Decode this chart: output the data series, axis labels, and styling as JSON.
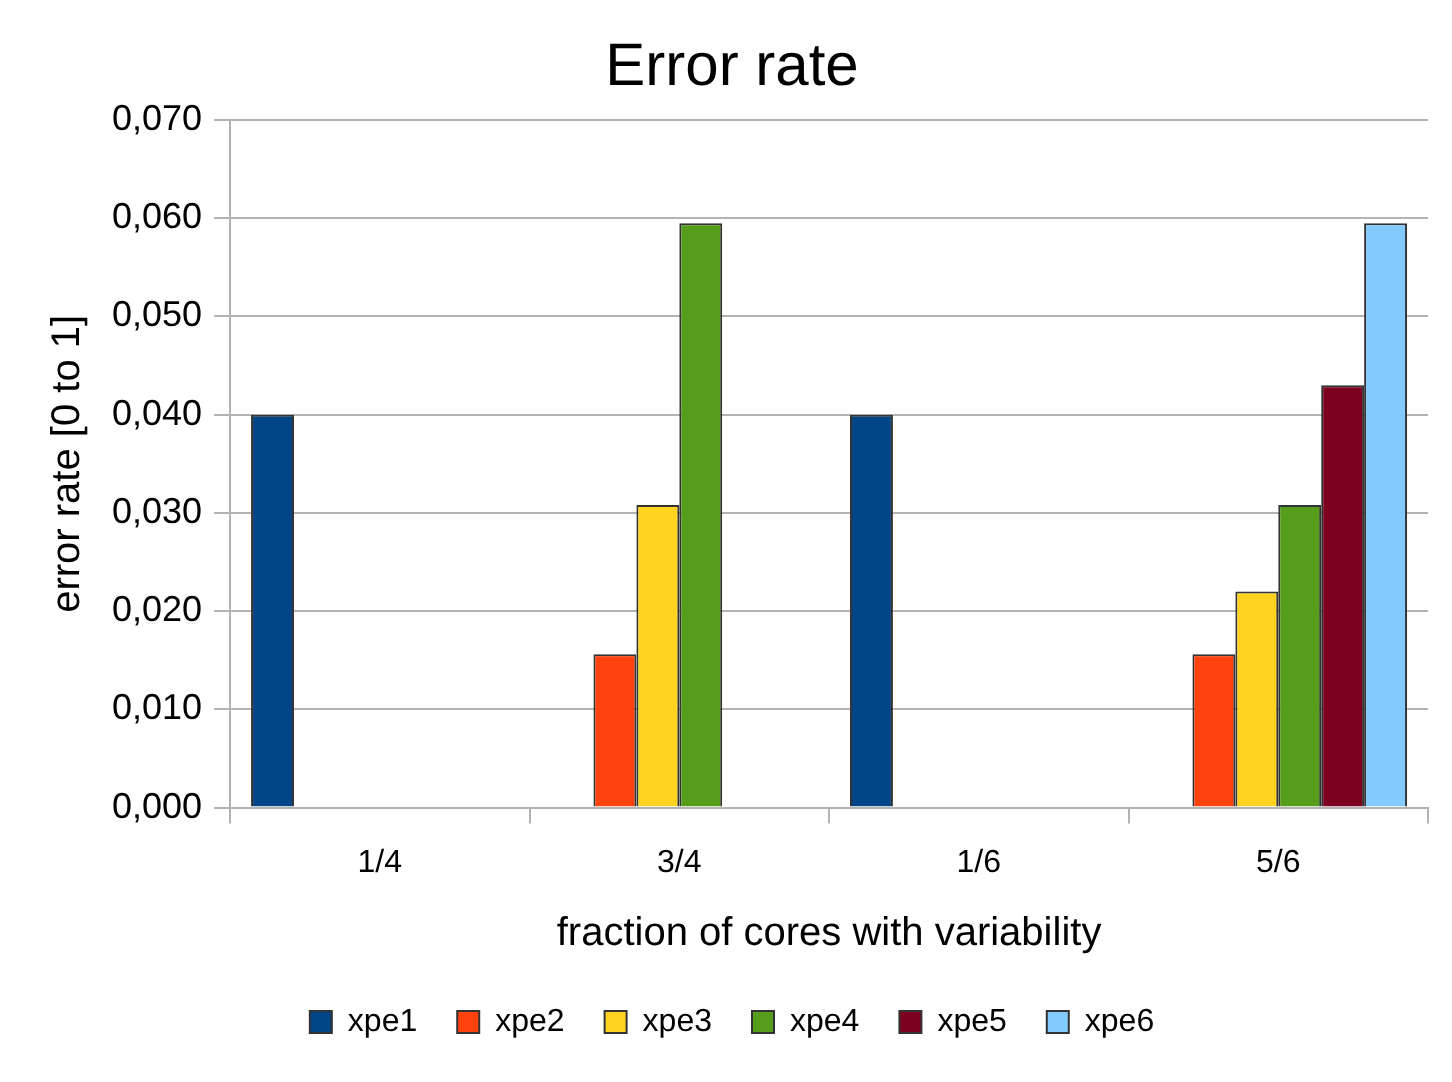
{
  "chart_data": {
    "type": "bar",
    "title": "Error rate",
    "xlabel": "fraction of cores with variability",
    "ylabel": "error rate [0 to 1]",
    "categories": [
      "1/4",
      "3/4",
      "1/6",
      "5/6"
    ],
    "series": [
      {
        "name": "xpe1",
        "color": "#004586",
        "values": [
          0.04,
          0,
          0.04,
          0
        ]
      },
      {
        "name": "xpe2",
        "color": "#ff420e",
        "values": [
          0,
          0.0156,
          0,
          0.0156
        ]
      },
      {
        "name": "xpe3",
        "color": "#ffd320",
        "values": [
          0,
          0.0308,
          0,
          0.022
        ]
      },
      {
        "name": "xpe4",
        "color": "#579d1c",
        "values": [
          0,
          0.0595,
          0,
          0.0308
        ]
      },
      {
        "name": "xpe5",
        "color": "#7e0021",
        "values": [
          0,
          0,
          0,
          0.043
        ]
      },
      {
        "name": "xpe6",
        "color": "#83caff",
        "values": [
          0,
          0,
          0,
          0.0595
        ]
      }
    ],
    "ylim": [
      0,
      0.07
    ],
    "yticks": [
      {
        "value": 0,
        "label": "0,000"
      },
      {
        "value": 0.01,
        "label": "0,010"
      },
      {
        "value": 0.02,
        "label": "0,020"
      },
      {
        "value": 0.03,
        "label": "0,030"
      },
      {
        "value": 0.04,
        "label": "0,040"
      },
      {
        "value": 0.05,
        "label": "0,050"
      },
      {
        "value": 0.06,
        "label": "0,060"
      },
      {
        "value": 0.07,
        "label": "0,070"
      }
    ],
    "grid": "y",
    "legend": "bottom"
  }
}
